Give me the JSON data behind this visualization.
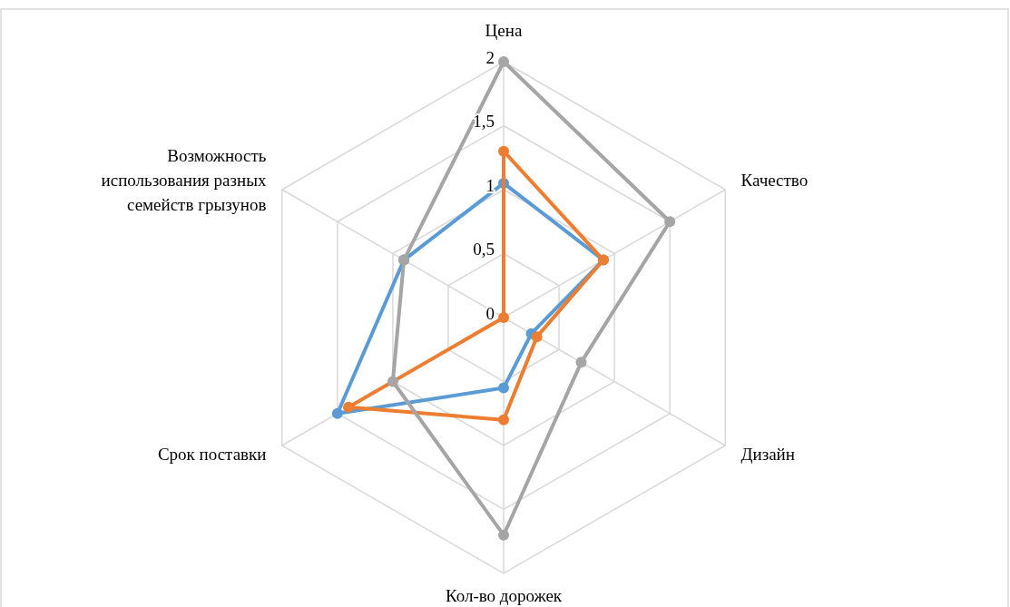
{
  "chart_data": {
    "type": "radar",
    "categories": [
      "Цена",
      "Качество",
      "Дизайн",
      "Кол-во дорожек",
      "Срок поставки",
      "Возможность использования разных семейств грызунов"
    ],
    "series": [
      {
        "color": "#5b9bd5",
        "values": [
          1.05,
          0.9,
          0.25,
          0.55,
          1.5,
          0.9
        ]
      },
      {
        "color": "#ed7d31",
        "values": [
          1.3,
          0.9,
          0.3,
          0.8,
          1.4,
          0
        ]
      },
      {
        "color": "#a5a5a5",
        "values": [
          2,
          1.5,
          0.7,
          1.7,
          1,
          0.9
        ]
      }
    ],
    "ylim": [
      0,
      2
    ],
    "yticks": [
      {
        "value": 0,
        "label": "0"
      },
      {
        "value": 0.5,
        "label": "0,5"
      },
      1,
      {
        "value": 1.5,
        "label": "1,5"
      },
      2
    ],
    "grid": true,
    "marker": "circle",
    "line_style": "solid"
  }
}
